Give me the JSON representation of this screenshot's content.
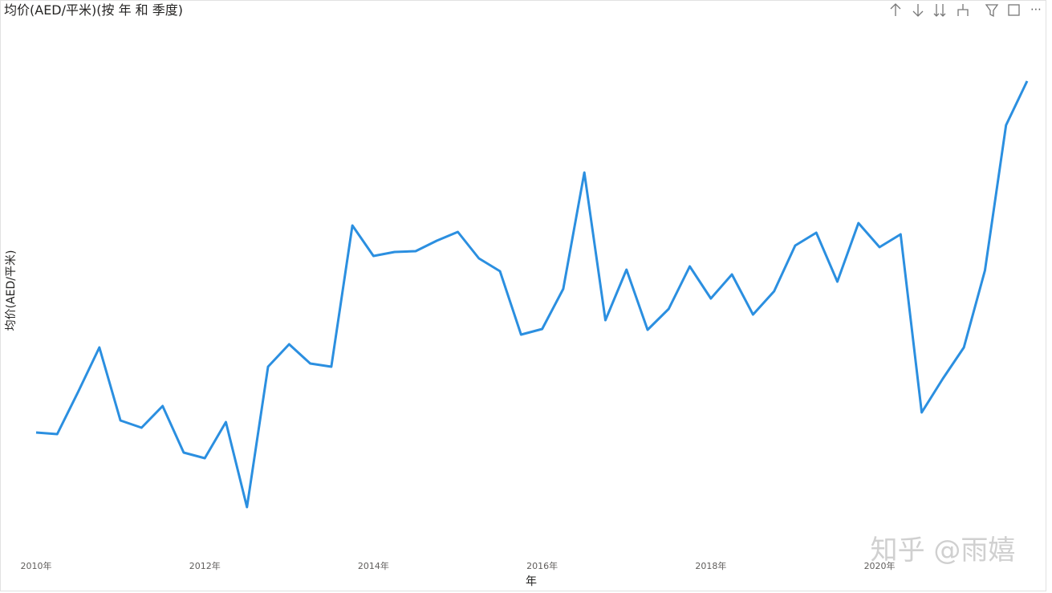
{
  "chart_data": {
    "type": "line",
    "title": "均价(AED/平米)(按 年 和 季度)",
    "x_label": "年",
    "y_label": "均价(AED/平米)",
    "watermark": "知乎 @雨嬉",
    "categories": [
      "2010年",
      null,
      null,
      null,
      null,
      null,
      null,
      null,
      "2012年",
      null,
      null,
      null,
      null,
      null,
      null,
      null,
      "2014年",
      null,
      null,
      null,
      null,
      null,
      null,
      null,
      "2016年",
      null,
      null,
      null,
      null,
      null,
      null,
      null,
      "2018年",
      null,
      null,
      null,
      null,
      null,
      null,
      null,
      "2020年",
      null,
      null,
      null,
      null,
      null,
      null,
      null
    ],
    "series": [
      {
        "name": "均价(AED/平米)",
        "color": "#2b8fe0",
        "values": [
          161,
          159,
          212,
          267,
          176,
          167,
          194,
          136,
          129,
          174,
          68,
          243,
          271,
          247,
          243,
          419,
          381,
          386,
          387,
          400,
          411,
          378,
          362,
          283,
          290,
          340,
          485,
          301,
          364,
          289,
          315,
          368,
          328,
          358,
          308,
          337,
          394,
          410,
          349,
          422,
          392,
          408,
          186,
          228,
          267,
          363,
          544,
          599
        ]
      }
    ],
    "ylim": [
      0,
      700
    ]
  }
}
